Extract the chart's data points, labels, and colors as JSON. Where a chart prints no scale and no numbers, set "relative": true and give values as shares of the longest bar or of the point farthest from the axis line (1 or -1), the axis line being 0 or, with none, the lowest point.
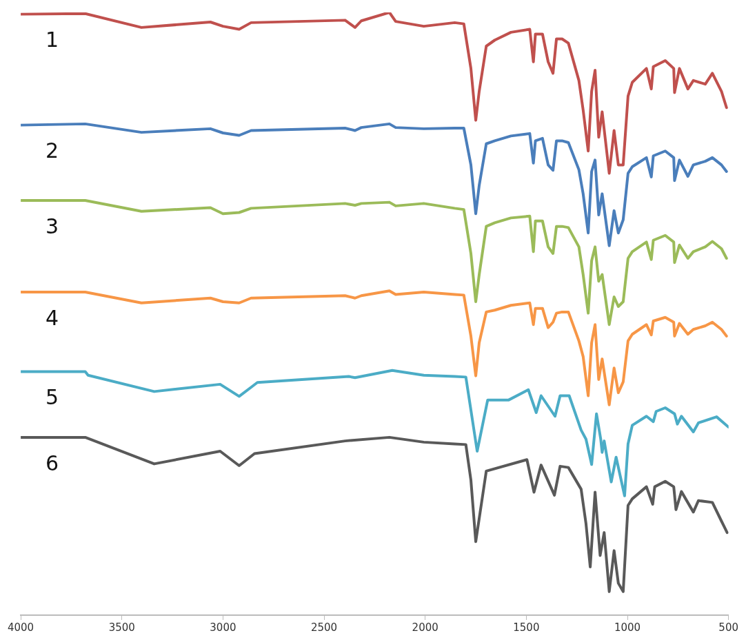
{
  "chart_data": {
    "type": "line",
    "relative": true,
    "xlim": [
      4000,
      500
    ],
    "xticks": [
      4000,
      3500,
      3000,
      2500,
      2000,
      1500,
      1000,
      500
    ],
    "legend": false,
    "grid": false,
    "marker": "none",
    "line_style": "solid",
    "x": [
      4000,
      3681,
      3403,
      3062,
      3000,
      2920,
      2861,
      2396,
      2347,
      2316,
      2177,
      2146,
      2007,
      1854,
      1809,
      1774,
      1750,
      1733,
      1698,
      1656,
      1576,
      1483,
      1465,
      1455,
      1420,
      1392,
      1368,
      1351,
      1323,
      1292,
      1240,
      1219,
      1194,
      1177,
      1160,
      1142,
      1125,
      1090,
      1066,
      1045,
      1021,
      997,
      976,
      906,
      882,
      872,
      813,
      771,
      767,
      743,
      701,
      674,
      615,
      580,
      535,
      510
    ],
    "series": [
      {
        "name": "1",
        "color": "#c0504d",
        "values": [
          0.997,
          0.998,
          0.975,
          0.984,
          0.977,
          0.972,
          0.983,
          0.987,
          0.975,
          0.986,
          1.0,
          0.985,
          0.977,
          0.983,
          0.981,
          0.907,
          0.821,
          0.869,
          0.944,
          0.954,
          0.967,
          0.972,
          0.918,
          0.964,
          0.964,
          0.918,
          0.899,
          0.956,
          0.956,
          0.949,
          0.887,
          0.838,
          0.77,
          0.869,
          0.904,
          0.793,
          0.835,
          0.733,
          0.804,
          0.747,
          0.747,
          0.861,
          0.884,
          0.907,
          0.873,
          0.91,
          0.92,
          0.907,
          0.867,
          0.907,
          0.873,
          0.887,
          0.881,
          0.899,
          0.869,
          0.842
        ]
      },
      {
        "name": "2",
        "color": "#4a7ebb",
        "values": [
          0.813,
          0.815,
          0.801,
          0.807,
          0.8,
          0.796,
          0.804,
          0.808,
          0.804,
          0.809,
          0.815,
          0.809,
          0.807,
          0.808,
          0.808,
          0.747,
          0.666,
          0.713,
          0.782,
          0.787,
          0.795,
          0.799,
          0.75,
          0.787,
          0.791,
          0.747,
          0.738,
          0.787,
          0.787,
          0.784,
          0.739,
          0.699,
          0.634,
          0.736,
          0.755,
          0.664,
          0.699,
          0.613,
          0.671,
          0.634,
          0.656,
          0.733,
          0.744,
          0.759,
          0.727,
          0.762,
          0.77,
          0.759,
          0.721,
          0.755,
          0.728,
          0.747,
          0.753,
          0.759,
          0.747,
          0.736
        ]
      },
      {
        "name": "3",
        "color": "#9bbb59",
        "values": [
          0.688,
          0.688,
          0.67,
          0.676,
          0.666,
          0.668,
          0.675,
          0.683,
          0.68,
          0.683,
          0.685,
          0.679,
          0.683,
          0.675,
          0.673,
          0.6,
          0.52,
          0.565,
          0.645,
          0.651,
          0.659,
          0.662,
          0.603,
          0.654,
          0.654,
          0.611,
          0.6,
          0.645,
          0.645,
          0.643,
          0.611,
          0.565,
          0.501,
          0.588,
          0.611,
          0.554,
          0.565,
          0.482,
          0.528,
          0.512,
          0.52,
          0.592,
          0.603,
          0.619,
          0.59,
          0.622,
          0.63,
          0.619,
          0.585,
          0.614,
          0.592,
          0.603,
          0.611,
          0.62,
          0.608,
          0.592
        ]
      },
      {
        "name": "4",
        "color": "#f79646",
        "values": [
          0.536,
          0.536,
          0.518,
          0.526,
          0.52,
          0.518,
          0.526,
          0.53,
          0.526,
          0.53,
          0.538,
          0.532,
          0.536,
          0.532,
          0.531,
          0.463,
          0.397,
          0.452,
          0.503,
          0.506,
          0.514,
          0.518,
          0.482,
          0.509,
          0.509,
          0.477,
          0.486,
          0.501,
          0.503,
          0.503,
          0.455,
          0.429,
          0.364,
          0.452,
          0.482,
          0.391,
          0.425,
          0.349,
          0.41,
          0.369,
          0.387,
          0.455,
          0.466,
          0.482,
          0.465,
          0.488,
          0.494,
          0.486,
          0.463,
          0.484,
          0.466,
          0.474,
          0.48,
          0.486,
          0.474,
          0.463
        ]
      },
      {
        "name": "5",
        "color": "#4bacc6",
        "x": [
          4000,
          3681,
          3667,
          3340,
          3014,
          2920,
          2861,
          2830,
          2378,
          2347,
          2163,
          2007,
          1854,
          1799,
          1778,
          1743,
          1691,
          1587,
          1490,
          1451,
          1427,
          1358,
          1333,
          1288,
          1229,
          1205,
          1177,
          1153,
          1132,
          1125,
          1115,
          1080,
          1056,
          1014,
          997,
          976,
          906,
          872,
          858,
          813,
          767,
          753,
          733,
          674,
          649,
          559,
          500
        ],
        "values": [
          0.404,
          0.404,
          0.398,
          0.371,
          0.383,
          0.363,
          0.378,
          0.386,
          0.396,
          0.394,
          0.406,
          0.398,
          0.396,
          0.395,
          0.349,
          0.272,
          0.357,
          0.357,
          0.374,
          0.336,
          0.364,
          0.33,
          0.364,
          0.364,
          0.307,
          0.292,
          0.25,
          0.334,
          0.292,
          0.27,
          0.289,
          0.221,
          0.262,
          0.198,
          0.284,
          0.315,
          0.33,
          0.321,
          0.338,
          0.344,
          0.334,
          0.317,
          0.33,
          0.304,
          0.319,
          0.329,
          0.312
        ]
      },
      {
        "name": "6",
        "color": "#595959",
        "x": [
          4000,
          3681,
          3340,
          3014,
          2920,
          2844,
          2396,
          2177,
          2007,
          1854,
          1799,
          1774,
          1750,
          1698,
          1497,
          1462,
          1427,
          1361,
          1333,
          1292,
          1229,
          1205,
          1184,
          1160,
          1135,
          1115,
          1090,
          1066,
          1045,
          1021,
          997,
          976,
          906,
          875,
          865,
          813,
          771,
          760,
          733,
          674,
          649,
          580,
          535,
          507
        ],
        "values": [
          0.295,
          0.295,
          0.251,
          0.272,
          0.248,
          0.268,
          0.289,
          0.295,
          0.287,
          0.284,
          0.283,
          0.224,
          0.122,
          0.239,
          0.258,
          0.204,
          0.249,
          0.199,
          0.247,
          0.245,
          0.209,
          0.152,
          0.08,
          0.204,
          0.099,
          0.137,
          0.039,
          0.107,
          0.053,
          0.039,
          0.182,
          0.193,
          0.213,
          0.184,
          0.213,
          0.222,
          0.213,
          0.175,
          0.205,
          0.171,
          0.19,
          0.187,
          0.156,
          0.137
        ]
      }
    ]
  }
}
